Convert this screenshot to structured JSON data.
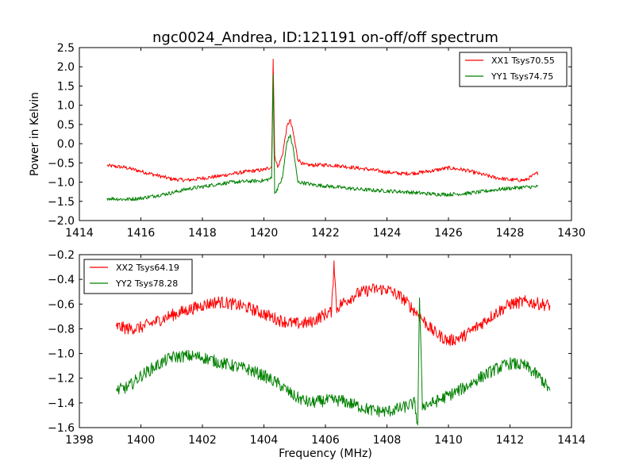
{
  "chart_data": [
    {
      "type": "line",
      "title": "ngc0024_Andrea, ID:121191 on-off/off spectrum",
      "xlabel": "",
      "ylabel": "Power in Kelvin",
      "xlim": [
        1414,
        1430
      ],
      "ylim": [
        -2.0,
        2.5
      ],
      "xticks": [
        "1414",
        "1416",
        "1418",
        "1420",
        "1422",
        "1424",
        "1426",
        "1428",
        "1430"
      ],
      "yticks": [
        "−2.0",
        "−1.5",
        "−1.0",
        "−0.5",
        "0.0",
        "0.5",
        "1.0",
        "1.5",
        "2.0",
        "2.5"
      ],
      "grid": false,
      "legend": "top-right",
      "series": [
        {
          "name": "XX1 Tsys70.55",
          "color": "#ff0000",
          "noise": 0.05,
          "x": [
            1414.9,
            1415.5,
            1416.0,
            1416.5,
            1417.0,
            1417.5,
            1418.0,
            1418.5,
            1419.0,
            1419.5,
            1420.0,
            1420.25,
            1420.3,
            1420.35,
            1420.45,
            1420.6,
            1420.75,
            1420.85,
            1420.95,
            1421.1,
            1421.3,
            1421.6,
            1422.0,
            1422.5,
            1423.0,
            1423.5,
            1424.0,
            1424.5,
            1425.0,
            1425.5,
            1426.0,
            1426.5,
            1427.0,
            1427.5,
            1428.0,
            1428.5,
            1428.9
          ],
          "y": [
            -0.57,
            -0.62,
            -0.72,
            -0.82,
            -0.92,
            -0.95,
            -0.9,
            -0.85,
            -0.78,
            -0.72,
            -0.68,
            -0.6,
            2.2,
            -0.3,
            -0.62,
            -0.3,
            0.45,
            0.62,
            0.3,
            -0.4,
            -0.55,
            -0.56,
            -0.55,
            -0.58,
            -0.63,
            -0.68,
            -0.74,
            -0.78,
            -0.76,
            -0.7,
            -0.63,
            -0.68,
            -0.78,
            -0.88,
            -0.94,
            -0.95,
            -0.76
          ]
        },
        {
          "name": "YY1 Tsys74.75",
          "color": "#008000",
          "noise": 0.05,
          "x": [
            1414.9,
            1415.5,
            1416.0,
            1416.5,
            1417.0,
            1417.5,
            1418.0,
            1418.5,
            1419.0,
            1419.5,
            1420.0,
            1420.25,
            1420.3,
            1420.35,
            1420.45,
            1420.6,
            1420.75,
            1420.85,
            1420.95,
            1421.1,
            1421.3,
            1421.6,
            1422.0,
            1422.5,
            1423.0,
            1423.5,
            1424.0,
            1424.5,
            1425.0,
            1425.5,
            1426.0,
            1426.5,
            1427.0,
            1427.5,
            1428.0,
            1428.5,
            1428.9
          ],
          "y": [
            -1.42,
            -1.45,
            -1.42,
            -1.35,
            -1.28,
            -1.18,
            -1.12,
            -1.05,
            -1.0,
            -0.98,
            -0.96,
            -0.9,
            1.8,
            -1.3,
            -1.15,
            -0.9,
            0.05,
            0.22,
            -0.1,
            -1.0,
            -1.02,
            -1.07,
            -1.1,
            -1.14,
            -1.18,
            -1.21,
            -1.23,
            -1.25,
            -1.28,
            -1.31,
            -1.32,
            -1.3,
            -1.26,
            -1.2,
            -1.16,
            -1.13,
            -1.12
          ]
        }
      ]
    },
    {
      "type": "line",
      "title": "",
      "xlabel": "Frequency (MHz)",
      "ylabel": "",
      "xlim": [
        1398,
        1414
      ],
      "ylim": [
        -1.6,
        -0.2
      ],
      "xticks": [
        "1398",
        "1400",
        "1402",
        "1404",
        "1406",
        "1408",
        "1410",
        "1412",
        "1414"
      ],
      "yticks": [
        "−1.6",
        "−1.4",
        "−1.2",
        "−1.0",
        "−0.8",
        "−0.6",
        "−0.4",
        "−0.2"
      ],
      "grid": false,
      "legend": "top-left",
      "series": [
        {
          "name": "XX2 Tsys64.19",
          "color": "#ff0000",
          "noise": 0.05,
          "x": [
            1399.2,
            1399.6,
            1400.0,
            1400.5,
            1401.0,
            1401.5,
            1402.0,
            1402.5,
            1403.0,
            1403.5,
            1404.0,
            1404.5,
            1405.0,
            1405.5,
            1406.0,
            1406.2,
            1406.28,
            1406.36,
            1406.5,
            1407.0,
            1407.5,
            1408.0,
            1408.5,
            1409.0,
            1409.5,
            1410.0,
            1410.5,
            1411.0,
            1411.5,
            1412.0,
            1412.5,
            1413.0,
            1413.3
          ],
          "y": [
            -0.78,
            -0.8,
            -0.79,
            -0.74,
            -0.69,
            -0.65,
            -0.61,
            -0.58,
            -0.6,
            -0.63,
            -0.68,
            -0.73,
            -0.76,
            -0.75,
            -0.68,
            -0.66,
            -0.25,
            -0.64,
            -0.6,
            -0.52,
            -0.48,
            -0.48,
            -0.55,
            -0.68,
            -0.82,
            -0.9,
            -0.86,
            -0.77,
            -0.68,
            -0.6,
            -0.58,
            -0.6,
            -0.61
          ]
        },
        {
          "name": "YY2 Tsys78.28",
          "color": "#008000",
          "noise": 0.05,
          "x": [
            1399.2,
            1399.6,
            1400.0,
            1400.5,
            1401.0,
            1401.5,
            1402.0,
            1402.5,
            1403.0,
            1403.5,
            1404.0,
            1404.5,
            1405.0,
            1405.5,
            1406.0,
            1406.5,
            1407.0,
            1407.5,
            1408.0,
            1408.5,
            1408.9,
            1409.0,
            1409.06,
            1409.15,
            1409.5,
            1410.0,
            1410.5,
            1411.0,
            1411.5,
            1412.0,
            1412.5,
            1413.0,
            1413.3
          ],
          "y": [
            -1.3,
            -1.27,
            -1.18,
            -1.1,
            -1.03,
            -1.02,
            -1.03,
            -1.07,
            -1.1,
            -1.13,
            -1.18,
            -1.25,
            -1.35,
            -1.4,
            -1.38,
            -1.38,
            -1.42,
            -1.46,
            -1.47,
            -1.44,
            -1.4,
            -1.58,
            -0.55,
            -1.42,
            -1.4,
            -1.34,
            -1.28,
            -1.2,
            -1.13,
            -1.08,
            -1.1,
            -1.2,
            -1.3
          ]
        }
      ]
    }
  ]
}
